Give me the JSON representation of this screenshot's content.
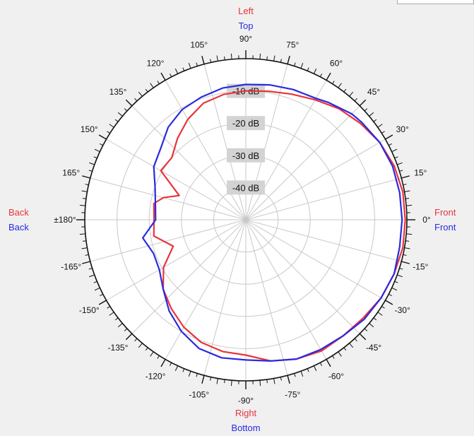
{
  "colors": {
    "series1": "#e8343c",
    "series2": "#2a2ae0",
    "background": "#f0f0f0",
    "plot_fill": "#ffffff",
    "grid": "#c8c8c8",
    "db_box": "#d3d3d3"
  },
  "side_labels": {
    "top": [
      "Left",
      "Top"
    ],
    "bottom": [
      "Right",
      "Bottom"
    ],
    "left": [
      "Back",
      "Back"
    ],
    "right": [
      "Front",
      "Front"
    ]
  },
  "chart_data": {
    "type": "polar-line",
    "angle_unit": "degrees",
    "radial_unit": "dB",
    "radial_range": [
      -50,
      0
    ],
    "radial_ticks": [
      -40,
      -30,
      -20,
      -10
    ],
    "radial_tick_labels": [
      "-40 dB",
      "-30 dB",
      "-20 dB",
      "-10 dB"
    ],
    "angle_ticks": [
      0,
      15,
      30,
      45,
      60,
      75,
      90,
      105,
      120,
      135,
      150,
      165,
      180,
      -165,
      -150,
      -135,
      -120,
      -105,
      -90,
      -75,
      -60,
      -45,
      -30,
      -15
    ],
    "angle_tick_labels": [
      "0°",
      "15°",
      "30°",
      "45°",
      "60°",
      "75°",
      "90°",
      "105°",
      "120°",
      "135°",
      "150°",
      "165°",
      "±180°",
      "-165°",
      "-150°",
      "-135°",
      "-120°",
      "-105°",
      "-90°",
      "-75°",
      "-60°",
      "-45°",
      "-30°",
      "-15°"
    ],
    "series": [
      {
        "color": "#e8343c",
        "points": [
          [
            0,
            -0.5
          ],
          [
            10,
            -0.5
          ],
          [
            20,
            -1.0
          ],
          [
            30,
            -2.0
          ],
          [
            40,
            -3.5
          ],
          [
            50,
            -5.0
          ],
          [
            60,
            -7.0
          ],
          [
            70,
            -8.5
          ],
          [
            80,
            -9.5
          ],
          [
            90,
            -10.0
          ],
          [
            100,
            -10.5
          ],
          [
            110,
            -11.5
          ],
          [
            120,
            -14.0
          ],
          [
            130,
            -17.0
          ],
          [
            140,
            -20.0
          ],
          [
            150,
            -19.5
          ],
          [
            160,
            -28.0
          ],
          [
            165,
            -23.5
          ],
          [
            170,
            -21.0
          ],
          [
            180,
            -21.5
          ],
          [
            190,
            -21.0
          ],
          [
            200,
            -26.0
          ],
          [
            210,
            -20.5
          ],
          [
            220,
            -16.5
          ],
          [
            230,
            -14.0
          ],
          [
            240,
            -11.5
          ],
          [
            250,
            -9.5
          ],
          [
            260,
            -8.5
          ],
          [
            270,
            -8.0
          ],
          [
            280,
            -5.5
          ],
          [
            290,
            -4.0
          ],
          [
            300,
            -3.0
          ],
          [
            310,
            -3.0
          ],
          [
            320,
            -2.5
          ],
          [
            330,
            -1.5
          ],
          [
            340,
            -1.0
          ],
          [
            350,
            -0.5
          ]
        ]
      },
      {
        "color": "#2a2ae0",
        "points": [
          [
            0,
            -1.5
          ],
          [
            10,
            -1.5
          ],
          [
            20,
            -1.5
          ],
          [
            30,
            -2.0
          ],
          [
            40,
            -3.0
          ],
          [
            45,
            -3.5
          ],
          [
            55,
            -5.5
          ],
          [
            60,
            -6.5
          ],
          [
            70,
            -7.0
          ],
          [
            80,
            -7.5
          ],
          [
            90,
            -8.0
          ],
          [
            100,
            -8.5
          ],
          [
            110,
            -9.5
          ],
          [
            120,
            -10.5
          ],
          [
            130,
            -12.5
          ],
          [
            140,
            -15.5
          ],
          [
            150,
            -17.0
          ],
          [
            160,
            -20.0
          ],
          [
            170,
            -21.5
          ],
          [
            180,
            -22.0
          ],
          [
            190,
            -17.5
          ],
          [
            200,
            -19.5
          ],
          [
            210,
            -19.0
          ],
          [
            220,
            -16.5
          ],
          [
            230,
            -13.0
          ],
          [
            240,
            -10.0
          ],
          [
            250,
            -7.5
          ],
          [
            260,
            -6.5
          ],
          [
            270,
            -6.5
          ],
          [
            280,
            -5.5
          ],
          [
            290,
            -4.0
          ],
          [
            300,
            -3.5
          ],
          [
            310,
            -3.0
          ],
          [
            320,
            -2.0
          ],
          [
            330,
            -1.5
          ],
          [
            340,
            -1.0
          ],
          [
            350,
            -1.5
          ]
        ]
      }
    ]
  }
}
